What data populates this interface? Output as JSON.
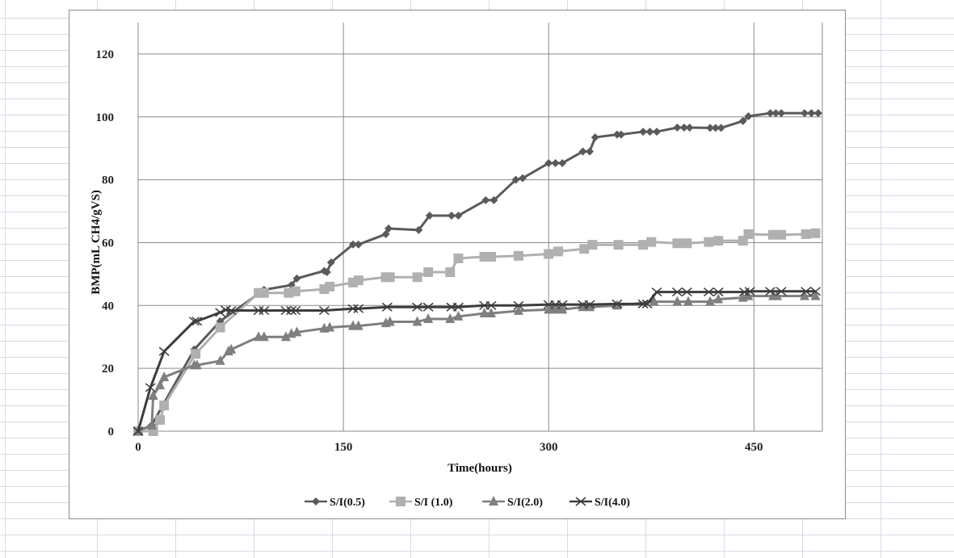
{
  "chart_data": {
    "type": "line",
    "title": "",
    "xlabel": "Time(hours)",
    "ylabel": "BMP(mL CH4/gVS)",
    "xlim": [
      0,
      500
    ],
    "ylim": [
      0,
      130
    ],
    "xticks": [
      0,
      150,
      300,
      450
    ],
    "yticks": [
      0,
      20,
      40,
      60,
      80,
      100,
      120
    ],
    "grid": true,
    "legend_position": "bottom",
    "series": [
      {
        "name": "S/I(0.5)",
        "color": "#5a5a5a",
        "marker": "diamond",
        "x": [
          0,
          10,
          41,
          60,
          92,
          112,
          116,
          136,
          138,
          141,
          157,
          161,
          181,
          183,
          205,
          213,
          229,
          234,
          254,
          260,
          276,
          281,
          300,
          305,
          310,
          325,
          330,
          334,
          350,
          353,
          369,
          374,
          379,
          394,
          399,
          403,
          418,
          422,
          426,
          442,
          446,
          462,
          466,
          470,
          487,
          492,
          497
        ],
        "y": [
          0,
          2,
          26,
          35,
          45,
          46.5,
          48.6,
          51,
          50.6,
          53.7,
          59.4,
          59.4,
          62.7,
          64.5,
          64,
          68.6,
          68.6,
          68.6,
          73.5,
          73.5,
          80,
          80.5,
          85.3,
          85.3,
          85.3,
          89,
          89,
          93.5,
          94.4,
          94.4,
          95.3,
          95.3,
          95.3,
          96.6,
          96.6,
          96.6,
          96.5,
          96.5,
          96.5,
          98.7,
          100.2,
          101.2,
          101.2,
          101.2,
          101.2,
          101.2,
          101.2
        ]
      },
      {
        "name": "S/I (1.0)",
        "color": "#b0b0b0",
        "marker": "square",
        "x": [
          0,
          11,
          16,
          19,
          42,
          60,
          88,
          92,
          110,
          115,
          136,
          140,
          157,
          161,
          181,
          184,
          204,
          212,
          228,
          234,
          253,
          258,
          278,
          300,
          307,
          326,
          332,
          351,
          369,
          375,
          394,
          401,
          417,
          424,
          442,
          446,
          464,
          470,
          488,
          495
        ],
        "y": [
          0,
          0,
          3.6,
          8.2,
          24.6,
          33,
          44,
          44,
          44,
          44.5,
          45.2,
          46,
          47.3,
          48,
          49,
          49,
          49,
          50.6,
          50.6,
          55,
          55.5,
          55.5,
          55.8,
          56.4,
          57.2,
          58,
          59.3,
          59.3,
          59.3,
          60.2,
          59.8,
          59.8,
          60.2,
          60.6,
          60.6,
          62.7,
          62.5,
          62.5,
          62.7,
          63
        ]
      },
      {
        "name": "S/I(2.0)",
        "color": "#7f7f7f",
        "marker": "triangle",
        "x": [
          0,
          10,
          11,
          16,
          19,
          41,
          43,
          60,
          66,
          68,
          88,
          92,
          108,
          112,
          116,
          136,
          140,
          157,
          161,
          181,
          184,
          204,
          212,
          228,
          234,
          253,
          258,
          278,
          300,
          305,
          310,
          325,
          330,
          350,
          377,
          394,
          402,
          418,
          424,
          442,
          446,
          464,
          467,
          487,
          495
        ],
        "y": [
          0,
          1.8,
          11.3,
          14.6,
          17.2,
          21,
          21,
          22.4,
          25.4,
          26,
          30,
          30,
          30,
          31,
          31.5,
          32.7,
          33,
          33.5,
          33.5,
          34.4,
          34.8,
          34.8,
          35.7,
          35.7,
          36.5,
          37.5,
          37.5,
          38.3,
          38.7,
          38.7,
          38.7,
          39.5,
          39.5,
          40,
          41.2,
          41.2,
          41.2,
          41.2,
          42,
          42.5,
          43,
          43,
          43,
          43,
          43
        ]
      },
      {
        "name": "S/I(4.0)",
        "color": "#3c3c3c",
        "marker": "x",
        "x": [
          0,
          9,
          19,
          41,
          43,
          60,
          64,
          68,
          88,
          92,
          108,
          112,
          115,
          136,
          157,
          161,
          182,
          204,
          212,
          229,
          234,
          253,
          258,
          278,
          300,
          305,
          310,
          325,
          330,
          350,
          369,
          372,
          379,
          394,
          401,
          417,
          424,
          443,
          447,
          462,
          470,
          488,
          495
        ],
        "y": [
          0,
          13.9,
          25.4,
          35,
          35,
          37.8,
          38.6,
          38.4,
          38.4,
          38.4,
          38.4,
          38.4,
          38.4,
          38.4,
          39,
          39,
          39.5,
          39.5,
          39.5,
          39.5,
          39.5,
          40,
          40,
          40,
          40.3,
          40.3,
          40.3,
          40.3,
          40.3,
          40.5,
          40.5,
          40.5,
          44.3,
          44.3,
          44.3,
          44.3,
          44.3,
          44.3,
          44.5,
          44.5,
          44.5,
          44.5,
          44.5
        ]
      }
    ]
  }
}
